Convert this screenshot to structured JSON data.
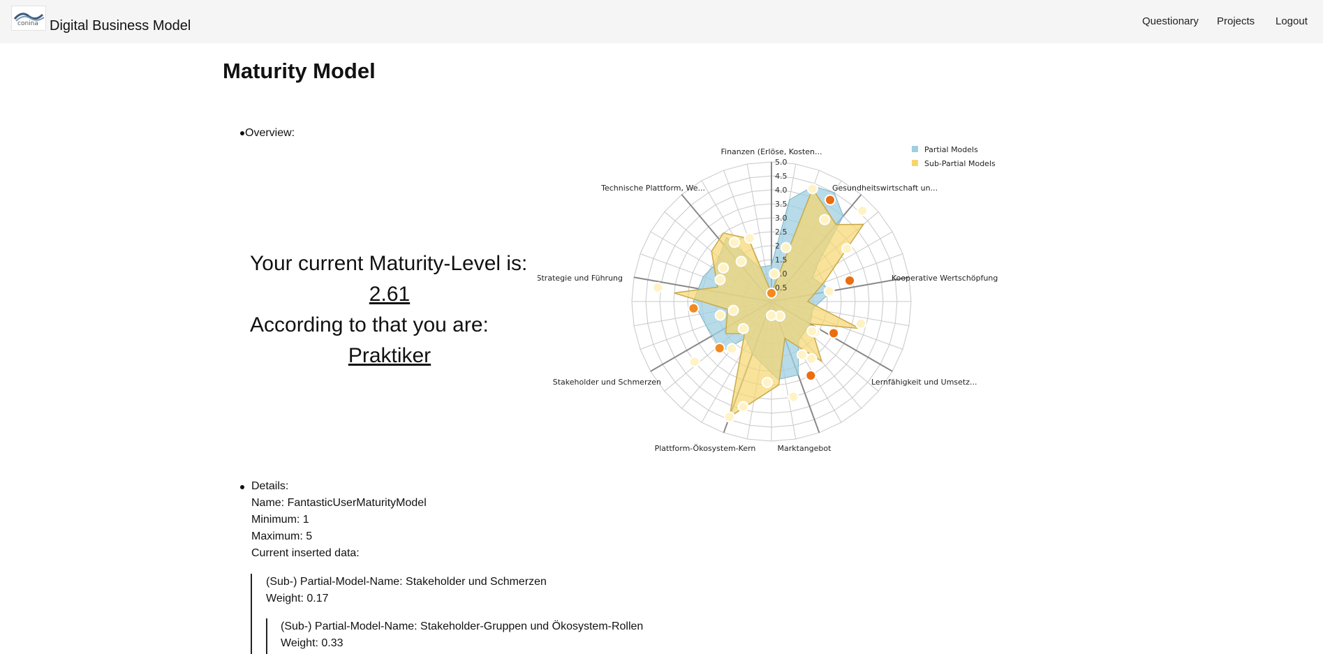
{
  "header": {
    "brand": "Digital Business Model",
    "logo_text": "conina",
    "nav": [
      "Questionary",
      "Projects",
      "Logout"
    ]
  },
  "page": {
    "title": "Maturity Model",
    "overview_label": "Overview:",
    "maturity_text": "Your current Maturity-Level is:",
    "maturity_value": "2.61",
    "according_text": "According to that you are:",
    "level_name": "Praktiker"
  },
  "chart_data": {
    "type": "radar",
    "axes": [
      "Finanzen (Erlöse, Kosten...",
      "Gesundheitswirtschaft un...",
      "Kooperative Wertschöpfung",
      "Lernfähigkeit und Umsetz...",
      "Marktangebot",
      "Plattform-Ökosystem-Kern",
      "Stakeholder und Schmerzen",
      "Strategie und Führung",
      "Technische Plattform, We..."
    ],
    "scale_ticks": [
      "5.0",
      "4.5",
      "4.0",
      "3.5",
      "3.0",
      "2.5",
      "2.0",
      "1.5",
      "1.0",
      "0.5"
    ],
    "range": [
      0,
      5
    ],
    "legend_position": "top-right",
    "legend": [
      "Partial Models",
      "Sub-Partial Models"
    ],
    "colors": {
      "partial_fill": "#9fcfe0",
      "sub_fill": "#f7d56e",
      "sub_stroke": "#c8a94a",
      "point_white": "#fff3c6",
      "point_orange": "#f28a20",
      "point_dark": "#ea6d10",
      "grid": "#c8c8c8",
      "spoke": "#888888"
    },
    "partial_polygon": [
      [
        0,
        1.3
      ],
      [
        10,
        3.7
      ],
      [
        20,
        4.4
      ],
      [
        30,
        4.5
      ],
      [
        40,
        4.0
      ],
      [
        50,
        2.2
      ],
      [
        60,
        1.7
      ],
      [
        80,
        2.2
      ],
      [
        100,
        1.5
      ],
      [
        120,
        1.6
      ],
      [
        145,
        1.7
      ],
      [
        160,
        2.8
      ],
      [
        175,
        2.8
      ],
      [
        200,
        2.0
      ],
      [
        215,
        1.6
      ],
      [
        225,
        2.5
      ],
      [
        250,
        2.5
      ],
      [
        270,
        2.8
      ],
      [
        290,
        2.6
      ],
      [
        305,
        2.4
      ],
      [
        325,
        2.8
      ],
      [
        340,
        1.3
      ]
    ],
    "sub_polygon": [
      [
        0,
        0.3
      ],
      [
        20,
        4.3
      ],
      [
        40,
        3.6
      ],
      [
        50,
        4.3
      ],
      [
        70,
        2.0
      ],
      [
        90,
        1.3
      ],
      [
        107,
        3.3
      ],
      [
        120,
        1.6
      ],
      [
        140,
        2.8
      ],
      [
        160,
        1.4
      ],
      [
        175,
        3.0
      ],
      [
        200,
        4.4
      ],
      [
        220,
        1.5
      ],
      [
        235,
        2.0
      ],
      [
        260,
        1.6
      ],
      [
        275,
        3.5
      ],
      [
        285,
        2.0
      ],
      [
        310,
        2.8
      ],
      [
        325,
        3.0
      ],
      [
        340,
        2.4
      ]
    ],
    "points": [
      {
        "a": 0,
        "r": 0.3,
        "k": "o"
      },
      {
        "a": 6,
        "r": 1.0,
        "k": "w"
      },
      {
        "a": 15,
        "r": 2.0,
        "k": "w"
      },
      {
        "a": 20,
        "r": 4.3,
        "k": "w"
      },
      {
        "a": 30,
        "r": 4.2,
        "k": "d"
      },
      {
        "a": 33,
        "r": 3.5,
        "k": "w"
      },
      {
        "a": 45,
        "r": 4.6,
        "k": "w"
      },
      {
        "a": 55,
        "r": 3.3,
        "k": "w"
      },
      {
        "a": 75,
        "r": 2.9,
        "k": "d"
      },
      {
        "a": 80,
        "r": 2.1,
        "k": "w"
      },
      {
        "a": 104,
        "r": 3.3,
        "k": "w"
      },
      {
        "a": 117,
        "r": 2.5,
        "k": "d"
      },
      {
        "a": 125,
        "r": 1.9,
        "k": "w"
      },
      {
        "a": 126,
        "r": 1.8,
        "k": "w"
      },
      {
        "a": 145,
        "r": 2.5,
        "k": "w"
      },
      {
        "a": 150,
        "r": 2.2,
        "k": "w"
      },
      {
        "a": 152,
        "r": 3.0,
        "k": "d"
      },
      {
        "a": 167,
        "r": 3.5,
        "k": "w"
      },
      {
        "a": 183,
        "r": 2.9,
        "k": "w"
      },
      {
        "a": 195,
        "r": 3.9,
        "k": "w"
      },
      {
        "a": 200,
        "r": 4.4,
        "k": "w"
      },
      {
        "a": 220,
        "r": 2.2,
        "k": "w"
      },
      {
        "a": 226,
        "r": 1.4,
        "k": "w"
      },
      {
        "a": 228,
        "r": 2.5,
        "k": "o"
      },
      {
        "a": 232,
        "r": 3.5,
        "k": "w"
      },
      {
        "a": 255,
        "r": 1.9,
        "k": "w"
      },
      {
        "a": 257,
        "r": 1.4,
        "k": "w"
      },
      {
        "a": 265,
        "r": 2.8,
        "k": "o"
      },
      {
        "a": 277,
        "r": 4.1,
        "k": "w"
      },
      {
        "a": 293,
        "r": 2.0,
        "k": "w"
      },
      {
        "a": 305,
        "r": 2.1,
        "k": "w"
      },
      {
        "a": 323,
        "r": 1.8,
        "k": "w"
      },
      {
        "a": 328,
        "r": 2.5,
        "k": "w"
      },
      {
        "a": 341,
        "r": 2.4,
        "k": "w"
      },
      {
        "a": 150,
        "r": 0.6,
        "k": "w"
      },
      {
        "a": 180,
        "r": 0.5,
        "k": "w"
      }
    ]
  },
  "details": {
    "label": "Details:",
    "name": "Name: FantasticUserMaturityModel",
    "minimum": "Minimum: 1",
    "maximum": "Maximum: 5",
    "current": "Current inserted data:",
    "level1": {
      "name": "(Sub-) Partial-Model-Name: Stakeholder und Schmerzen",
      "weight": "Weight: 0.17"
    },
    "level2": {
      "name": "(Sub-) Partial-Model-Name: Stakeholder-Gruppen und Ökosystem-Rollen",
      "weight": "Weight: 0.33"
    }
  }
}
